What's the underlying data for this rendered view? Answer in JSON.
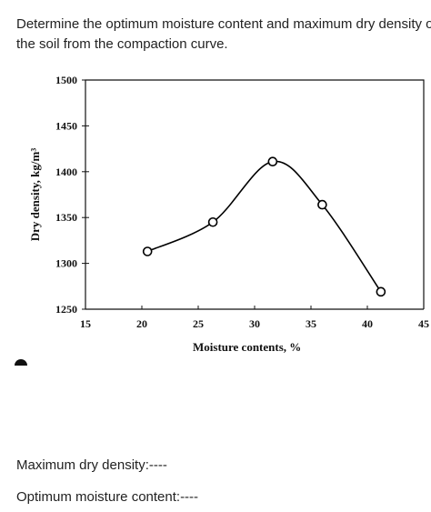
{
  "question": [
    "Determine the optimum moisture content and maximum dry density of",
    "the soil from the compaction curve."
  ],
  "answers": [
    "Maximum dry density:----",
    "Optimum moisture content:----"
  ],
  "chart_data": {
    "type": "line",
    "x_label": "Moisture contents, %",
    "y_label": "Dry density, kg/m³",
    "x": [
      20.5,
      26.3,
      31.6,
      36.0,
      41.2
    ],
    "series": [
      {
        "color": "#000000",
        "values": [
          1313,
          1345,
          1411,
          1364,
          1269
        ]
      }
    ],
    "xlim": [
      15,
      45
    ],
    "xticks": [
      15,
      20,
      25,
      30,
      35,
      40,
      45
    ],
    "ylim": [
      1250,
      1500
    ],
    "yticks": [
      1250,
      1300,
      1350,
      1400,
      1450,
      1500
    ]
  }
}
